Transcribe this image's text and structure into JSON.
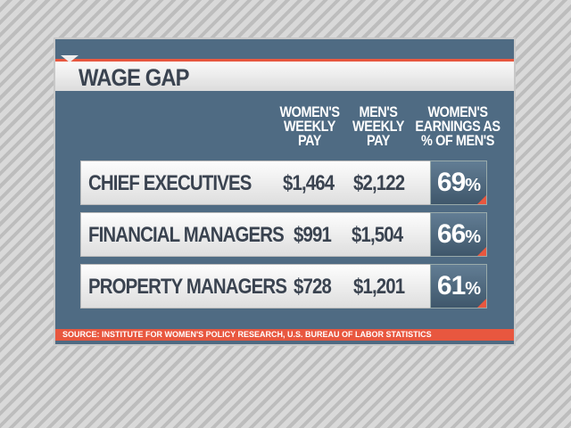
{
  "title": "WAGE GAP",
  "headers": {
    "women_pay": [
      "WOMEN'S",
      "WEEKLY",
      "PAY"
    ],
    "men_pay": [
      "MEN'S",
      "WEEKLY",
      "PAY"
    ],
    "pct": [
      "WOMEN'S",
      "EARNINGS AS",
      "% OF MEN'S"
    ]
  },
  "chart_data": {
    "type": "table",
    "title": "WAGE GAP",
    "columns": [
      "WOMEN'S WEEKLY PAY",
      "MEN'S WEEKLY PAY",
      "WOMEN'S EARNINGS AS % OF MEN'S"
    ],
    "rows": [
      {
        "label": "CHIEF EXECUTIVES",
        "women": "$1,464",
        "men": "$2,122",
        "pct": "69",
        "pct_sign": "%"
      },
      {
        "label": "FINANCIAL MANAGERS",
        "women": "$991",
        "men": "$1,504",
        "pct": "66",
        "pct_sign": "%"
      },
      {
        "label": "PROPERTY MANAGERS",
        "women": "$728",
        "men": "$1,201",
        "pct": "61",
        "pct_sign": "%"
      }
    ]
  },
  "source": "SOURCE: INSTITUTE FOR WOMEN'S POLICY RESEARCH, U.S. BUREAU OF LABOR STATISTICS",
  "colors": {
    "panel": "#4f6b83",
    "accent": "#e8573f",
    "text": "#3a4350"
  }
}
